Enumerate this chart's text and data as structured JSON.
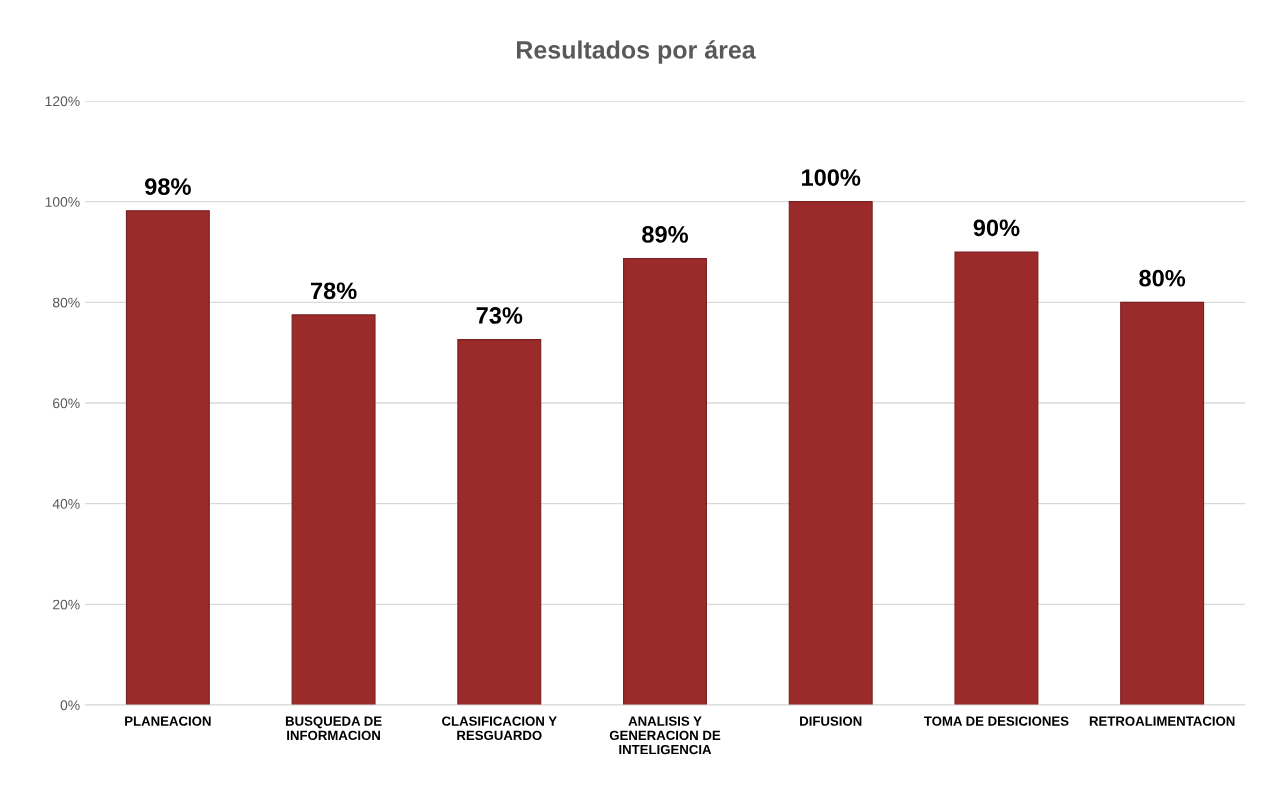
{
  "chart_data": {
    "type": "bar",
    "title": "Resultados por área",
    "categories": [
      "PLANEACION",
      "BUSQUEDA DE INFORMACION",
      "CLASIFICACION Y RESGUARDO",
      "ANALISIS Y GENERACION DE INTELIGENCIA",
      "DIFUSION",
      "TOMA DE DESICIONES",
      "RETROALIMENTACION"
    ],
    "values": [
      98.2,
      77.5,
      72.6,
      88.7,
      100,
      90,
      80
    ],
    "value_labels": [
      "98%",
      "78%",
      "73%",
      "89%",
      "100%",
      "90%",
      "80%"
    ],
    "color": "#9b2b2b",
    "ylim": [
      0,
      120
    ],
    "yticks": [
      {
        "value": 0,
        "label": "0%"
      },
      {
        "value": 20,
        "label": "20%"
      },
      {
        "value": 40,
        "label": "40%"
      },
      {
        "value": 60,
        "label": "60%"
      },
      {
        "value": 80,
        "label": "80%"
      },
      {
        "value": 100,
        "label": "100%"
      },
      {
        "value": 120,
        "label": "120%"
      }
    ],
    "grid": "y",
    "legend": false
  }
}
